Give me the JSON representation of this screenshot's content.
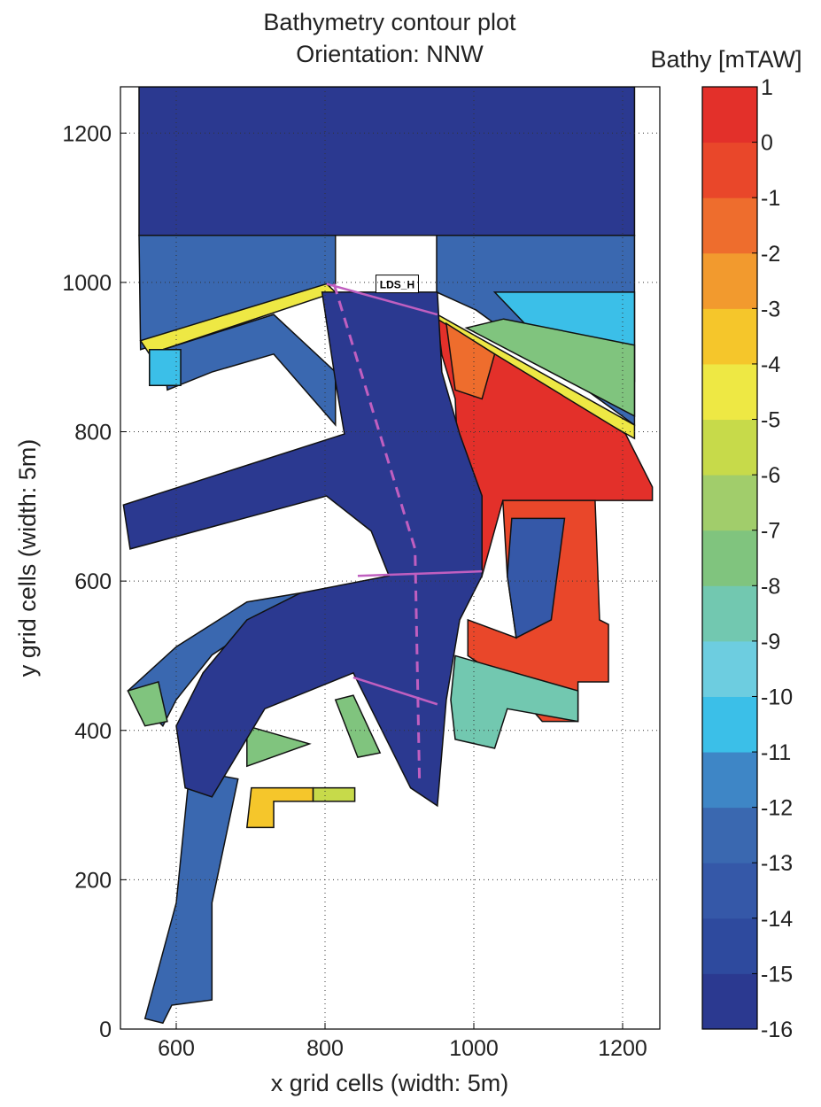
{
  "chart_data": {
    "type": "contour",
    "title": [
      "Bathymetry contour plot",
      "Orientation: NNW"
    ],
    "xlabel": "x grid cells (width: 5m)",
    "ylabel": "y grid cells (width: 5m)",
    "xlim": [
      525,
      1250
    ],
    "ylim": [
      0,
      1262
    ],
    "xticks": [
      600,
      800,
      1000,
      1200
    ],
    "yticks": [
      0,
      200,
      400,
      600,
      800,
      1000,
      1200
    ],
    "grid": true,
    "colorbar": {
      "label": "Bathy [mTAW]",
      "ticks": [
        1,
        0,
        -1,
        -2,
        -3,
        -4,
        -5,
        -6,
        -7,
        -8,
        -9,
        -10,
        -11,
        -12,
        -13,
        -14,
        -15,
        -16
      ],
      "colors": [
        "#2b3990",
        "#2e4a9e",
        "#3558a8",
        "#3a68b0",
        "#3e86c6",
        "#3bbfe8",
        "#6dcde0",
        "#72c8b0",
        "#80c47e",
        "#a1cd6b",
        "#c7da4a",
        "#eee844",
        "#f5c62b",
        "#f29a2e",
        "#ee6d2d",
        "#e9472a",
        "#e3302a"
      ]
    },
    "regions": [
      {
        "value": -15.5,
        "points": [
          [
            550,
            1063
          ],
          [
            1216,
            1063
          ],
          [
            1216,
            1262
          ],
          [
            550,
            1262
          ]
        ]
      },
      {
        "value": -12.5,
        "points": [
          [
            550,
            1063
          ],
          [
            814,
            1063
          ],
          [
            814,
            998
          ],
          [
            719,
            963
          ],
          [
            552,
            910
          ]
        ]
      },
      {
        "value": -4.5,
        "points": [
          [
            552,
            922
          ],
          [
            802,
            998
          ],
          [
            814,
            987
          ],
          [
            564,
            904
          ]
        ]
      },
      {
        "value": -12.5,
        "points": [
          [
            582,
            910
          ],
          [
            731,
            957
          ],
          [
            814,
            880
          ],
          [
            814,
            809
          ],
          [
            731,
            904
          ],
          [
            648,
            880
          ],
          [
            588,
            856
          ]
        ]
      },
      {
        "value": -10.5,
        "points": [
          [
            564,
            910
          ],
          [
            606,
            910
          ],
          [
            606,
            862
          ],
          [
            564,
            862
          ]
        ]
      },
      {
        "value": -12.5,
        "points": [
          [
            950,
            1063
          ],
          [
            1216,
            1063
          ],
          [
            1216,
            809
          ],
          [
            1003,
            963
          ],
          [
            950,
            987
          ]
        ]
      },
      {
        "value": -10.5,
        "points": [
          [
            1028,
            987
          ],
          [
            1216,
            987
          ],
          [
            1216,
            868
          ],
          [
            1074,
            939
          ]
        ]
      },
      {
        "value": -7.5,
        "points": [
          [
            1040,
            951
          ],
          [
            1216,
            916
          ],
          [
            1216,
            821
          ],
          [
            990,
            939
          ]
        ]
      },
      {
        "value": -4.5,
        "points": [
          [
            951,
            957
          ],
          [
            1216,
            809
          ],
          [
            1216,
            791
          ],
          [
            951,
            939
          ]
        ]
      },
      {
        "value": 0.5,
        "points": [
          [
            951,
            951
          ],
          [
            1204,
            797
          ],
          [
            1240,
            726
          ],
          [
            1240,
            708
          ],
          [
            1039,
            708
          ],
          [
            1011,
            607
          ],
          [
            981,
            714
          ],
          [
            975,
            844
          ],
          [
            957,
            903
          ]
        ]
      },
      {
        "value": -1.5,
        "points": [
          [
            963,
            945
          ],
          [
            1028,
            904
          ],
          [
            1011,
            844
          ],
          [
            975,
            856
          ]
        ]
      },
      {
        "value": -0.5,
        "points": [
          [
            1039,
            708
          ],
          [
            1163,
            708
          ],
          [
            1169,
            548
          ],
          [
            1181,
            542
          ],
          [
            1181,
            465
          ],
          [
            1140,
            465
          ],
          [
            1140,
            412
          ],
          [
            1092,
            412
          ],
          [
            1045,
            465
          ],
          [
            992,
            500
          ],
          [
            992,
            548
          ],
          [
            1057,
            524
          ],
          [
            1045,
            607
          ]
        ]
      },
      {
        "value": -13.5,
        "points": [
          [
            1051,
            684
          ],
          [
            1122,
            684
          ],
          [
            1104,
            548
          ],
          [
            1057,
            524
          ],
          [
            1045,
            607
          ]
        ]
      },
      {
        "value": -8.5,
        "points": [
          [
            975,
            500
          ],
          [
            1140,
            453
          ],
          [
            1140,
            412
          ],
          [
            1045,
            429
          ],
          [
            1028,
            376
          ],
          [
            975,
            388
          ],
          [
            969,
            441
          ]
        ]
      },
      {
        "value": -12.5,
        "points": [
          [
            535,
            453
          ],
          [
            600,
            512
          ],
          [
            695,
            572
          ],
          [
            767,
            584
          ],
          [
            719,
            548
          ],
          [
            648,
            501
          ],
          [
            600,
            441
          ],
          [
            582,
            406
          ]
        ]
      },
      {
        "value": -7.5,
        "points": [
          [
            535,
            453
          ],
          [
            576,
            465
          ],
          [
            588,
            412
          ],
          [
            558,
            406
          ]
        ]
      },
      {
        "value": -7.5,
        "points": [
          [
            695,
            406
          ],
          [
            779,
            382
          ],
          [
            695,
            352
          ]
        ]
      },
      {
        "value": -7.5,
        "points": [
          [
            814,
            441
          ],
          [
            838,
            447
          ],
          [
            874,
            370
          ],
          [
            844,
            364
          ]
        ]
      },
      {
        "value": -12.5,
        "points": [
          [
            618,
            347
          ],
          [
            683,
            335
          ],
          [
            648,
            169
          ],
          [
            648,
            39
          ],
          [
            594,
            32
          ],
          [
            582,
            8
          ],
          [
            558,
            14
          ],
          [
            600,
            169
          ]
        ]
      },
      {
        "value": -15.5,
        "points": [
          [
            796,
            987
          ],
          [
            814,
            868
          ],
          [
            826,
            797
          ],
          [
            529,
            702
          ],
          [
            538,
            643
          ],
          [
            802,
            714
          ],
          [
            862,
            667
          ],
          [
            886,
            607
          ],
          [
            767,
            584
          ],
          [
            695,
            548
          ],
          [
            636,
            477
          ],
          [
            600,
            406
          ],
          [
            612,
            323
          ],
          [
            648,
            311
          ],
          [
            719,
            429
          ],
          [
            838,
            477
          ],
          [
            915,
            323
          ],
          [
            951,
            299
          ],
          [
            963,
            441
          ],
          [
            981,
            548
          ],
          [
            1011,
            607
          ],
          [
            1011,
            714
          ],
          [
            981,
            797
          ],
          [
            957,
            880
          ],
          [
            951,
            987
          ]
        ]
      },
      {
        "value": -3.5,
        "points": [
          [
            701,
            323
          ],
          [
            784,
            323
          ],
          [
            784,
            305
          ],
          [
            731,
            305
          ],
          [
            731,
            270
          ],
          [
            695,
            270
          ]
        ]
      },
      {
        "value": -5.5,
        "points": [
          [
            784,
            323
          ],
          [
            840,
            323
          ],
          [
            840,
            305
          ],
          [
            784,
            305
          ]
        ]
      }
    ],
    "sections": {
      "color": "#c05fc0",
      "lines": [
        [
          [
            802,
            998
          ],
          [
            951,
            957
          ]
        ],
        [
          [
            844,
            607
          ],
          [
            1011,
            613
          ]
        ],
        [
          [
            838,
            471
          ],
          [
            951,
            435
          ]
        ]
      ],
      "dashed": [
        [
          812,
          998
        ],
        [
          921,
          643
        ],
        [
          927,
          329
        ]
      ]
    },
    "annotation": {
      "text": "LDS_H",
      "x": 897,
      "y": 998
    }
  }
}
